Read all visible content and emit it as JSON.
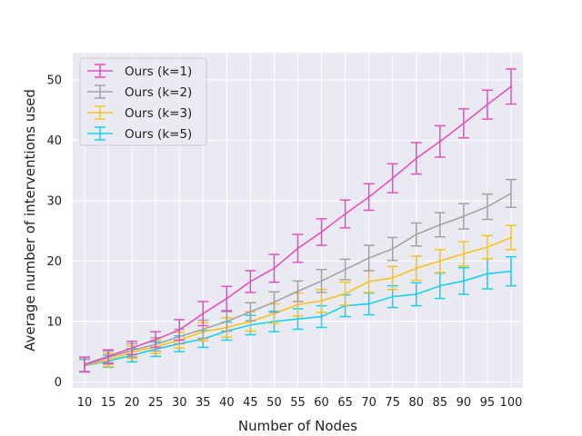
{
  "chart_data": {
    "type": "line",
    "title": "",
    "xlabel": "Number of Nodes",
    "ylabel": "Average number of interventions used",
    "x": [
      10,
      15,
      20,
      25,
      30,
      35,
      40,
      45,
      50,
      55,
      60,
      65,
      70,
      75,
      80,
      85,
      90,
      95,
      100
    ],
    "xticks": [
      "10",
      "15",
      "20",
      "25",
      "30",
      "35",
      "40",
      "45",
      "50",
      "55",
      "60",
      "65",
      "70",
      "75",
      "80",
      "85",
      "90",
      "95",
      "100"
    ],
    "yticks": [
      "0",
      "10",
      "20",
      "30",
      "40",
      "50"
    ],
    "ylim": [
      -1,
      54.5
    ],
    "xlim": [
      7.5,
      102.5
    ],
    "grid": true,
    "legend_position": "top-left",
    "series": [
      {
        "name": "Ours (k=1)",
        "color": "#e84fc4",
        "values": [
          2.9,
          4.2,
          5.6,
          7.0,
          8.6,
          11.3,
          13.8,
          16.6,
          18.8,
          22.1,
          24.8,
          27.8,
          30.6,
          33.7,
          37.0,
          39.8,
          42.8,
          45.9,
          48.9
        ],
        "errors": [
          1.2,
          1.1,
          1.1,
          1.3,
          1.7,
          2.0,
          2.0,
          1.8,
          2.3,
          2.3,
          2.2,
          2.3,
          2.2,
          2.4,
          2.6,
          2.6,
          2.4,
          2.4,
          2.9
        ]
      },
      {
        "name": "Ours (k=2)",
        "color": "#a3a3a3",
        "values": [
          2.7,
          4.0,
          5.2,
          6.2,
          7.5,
          8.7,
          10.0,
          11.6,
          13.2,
          15.0,
          16.7,
          18.6,
          20.5,
          22.0,
          24.4,
          26.0,
          27.4,
          29.0,
          31.2
        ],
        "errors": [
          1.1,
          1.1,
          1.1,
          1.1,
          1.2,
          1.5,
          1.6,
          1.5,
          1.7,
          1.7,
          1.9,
          1.7,
          2.1,
          1.9,
          1.9,
          2.0,
          2.1,
          2.1,
          2.3
        ]
      },
      {
        "name": "Ours (k=3)",
        "color": "#fbc21c",
        "values": [
          2.7,
          3.6,
          4.9,
          5.8,
          6.9,
          8.3,
          9.0,
          10.0,
          11.3,
          12.8,
          13.4,
          14.6,
          16.6,
          17.2,
          18.8,
          20.0,
          21.2,
          22.3,
          23.9
        ],
        "errors": [
          1.1,
          1.1,
          1.0,
          1.1,
          1.3,
          1.5,
          1.6,
          1.6,
          1.6,
          1.9,
          1.9,
          1.9,
          1.8,
          1.9,
          2.0,
          1.9,
          2.0,
          1.9,
          2.0
        ]
      },
      {
        "name": "Ours (k=5)",
        "color": "#16d1f0",
        "values": [
          2.7,
          3.4,
          4.4,
          5.4,
          6.3,
          7.1,
          8.4,
          9.4,
          10.0,
          10.4,
          10.8,
          12.6,
          12.9,
          14.1,
          14.5,
          15.9,
          16.7,
          17.9,
          18.3
        ],
        "errors": [
          1.0,
          1.0,
          1.1,
          1.2,
          1.3,
          1.4,
          1.5,
          1.6,
          1.7,
          1.7,
          1.8,
          1.8,
          1.8,
          1.8,
          1.9,
          2.1,
          2.2,
          2.5,
          2.4
        ]
      }
    ]
  }
}
